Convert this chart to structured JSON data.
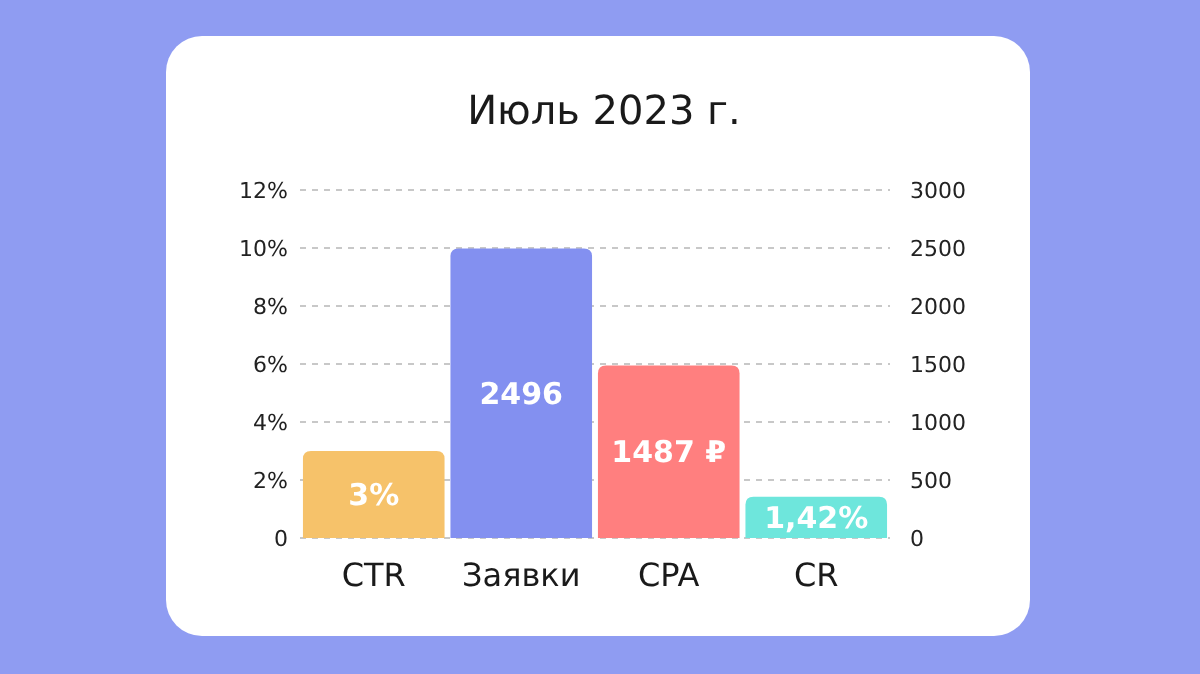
{
  "chart_data": {
    "type": "bar",
    "title": "Июль 2023 г.",
    "categories": [
      "CTR",
      "Заявки",
      "CPA",
      "CR"
    ],
    "series": [
      {
        "colors": [
          "#f6c26a",
          null,
          null,
          "#6ee6dc"
        ],
        "values": [
          3,
          null,
          null,
          1.42
        ],
        "value_labels": [
          "3%",
          null,
          null,
          "1,42%"
        ]
      },
      {
        "axis": "y2",
        "colors": [
          null,
          "#8390f0",
          "#ff7f7f",
          null
        ],
        "values": [
          null,
          2496,
          1487,
          null
        ],
        "value_labels": [
          null,
          "2496",
          "1487 ₽",
          null
        ]
      }
    ],
    "ylim": [
      0,
      12
    ],
    "yticks": [
      0,
      {
        "value": 2,
        "label": "2%"
      },
      {
        "value": 4,
        "label": "4%"
      },
      {
        "value": 6,
        "label": "6%"
      },
      {
        "value": 8,
        "label": "8%"
      },
      {
        "value": 10,
        "label": "10%"
      },
      {
        "value": 12,
        "label": "12%"
      }
    ],
    "y2lim": [
      0,
      3000
    ],
    "y2ticks": [
      0,
      500,
      1000,
      1500,
      2000,
      2500,
      3000
    ],
    "grid": "y"
  }
}
